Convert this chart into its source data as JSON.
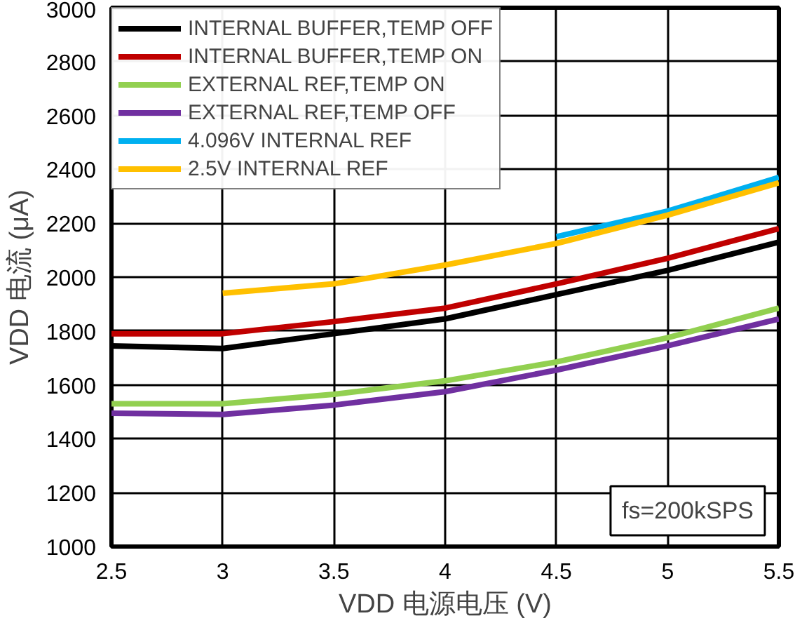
{
  "chart_data": {
    "type": "line",
    "xlabel": "VDD 电源电压 (V)",
    "ylabel": "VDD 电流 (μA)",
    "x": [
      2.5,
      3,
      3.5,
      4,
      4.5,
      5,
      5.5
    ],
    "xlim": [
      2.5,
      5.5
    ],
    "xticks": [
      2.5,
      3,
      3.5,
      4,
      4.5,
      5,
      5.5
    ],
    "ylim": [
      1000,
      3000
    ],
    "yticks": [
      1000,
      1200,
      1400,
      1600,
      1800,
      2000,
      2200,
      2400,
      2600,
      2800,
      3000
    ],
    "grid": true,
    "legend": "top left",
    "line_style": "solid",
    "marker": "none",
    "annotations": [
      "fs=200kSPS"
    ],
    "series": [
      {
        "name": "INTERNAL BUFFER,TEMP OFF",
        "color": "#000000",
        "values": [
          1745,
          1735,
          1790,
          1845,
          1935,
          2025,
          2130
        ]
      },
      {
        "name": "INTERNAL BUFFER,TEMP ON",
        "color": "#c00000",
        "values": [
          1790,
          1790,
          1835,
          1885,
          1975,
          2070,
          2180
        ]
      },
      {
        "name": "EXTERNAL REF,TEMP ON",
        "color": "#92d050",
        "values": [
          1530,
          1530,
          1565,
          1615,
          1685,
          1775,
          1885
        ]
      },
      {
        "name": "EXTERNAL REF,TEMP OFF",
        "color": "#7030a0",
        "values": [
          1495,
          1490,
          1525,
          1575,
          1655,
          1745,
          1845
        ]
      },
      {
        "name": "4.096V INTERNAL REF",
        "color": "#00b0f0",
        "values": [
          null,
          null,
          null,
          null,
          2150,
          2245,
          2370
        ]
      },
      {
        "name": "2.5V INTERNAL REF",
        "color": "#ffc000",
        "values": [
          null,
          1940,
          1975,
          2045,
          2125,
          2230,
          2350
        ]
      }
    ]
  }
}
